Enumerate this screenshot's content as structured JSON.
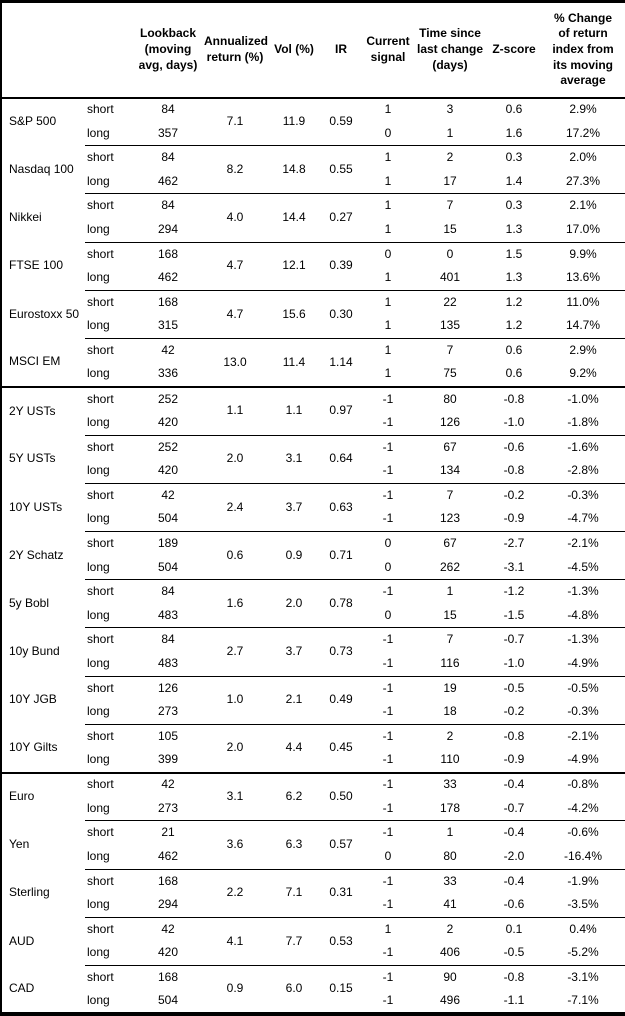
{
  "table": {
    "columns": {
      "asset": "",
      "term": "",
      "lookback": "Lookback (moving avg, days)",
      "annualized": "Annualized return (%)",
      "vol": "Vol (%)",
      "ir": "IR",
      "signal": "Current signal",
      "time": "Time since last change (days)",
      "zscore": "Z-score",
      "change": "% Change of return index from its moving average"
    },
    "sections": [
      {
        "groups": [
          {
            "name": "S&P 500",
            "annualized": "7.1",
            "vol": "11.9",
            "ir": "0.59",
            "rows": [
              {
                "term": "short",
                "lookback": "84",
                "signal": "1",
                "time": "3",
                "zscore": "0.6",
                "change": "2.9%"
              },
              {
                "term": "long",
                "lookback": "357",
                "signal": "0",
                "time": "1",
                "zscore": "1.6",
                "change": "17.2%"
              }
            ]
          },
          {
            "name": "Nasdaq 100",
            "annualized": "8.2",
            "vol": "14.8",
            "ir": "0.55",
            "rows": [
              {
                "term": "short",
                "lookback": "84",
                "signal": "1",
                "time": "2",
                "zscore": "0.3",
                "change": "2.0%"
              },
              {
                "term": "long",
                "lookback": "462",
                "signal": "1",
                "time": "17",
                "zscore": "1.4",
                "change": "27.3%"
              }
            ]
          },
          {
            "name": "Nikkei",
            "annualized": "4.0",
            "vol": "14.4",
            "ir": "0.27",
            "rows": [
              {
                "term": "short",
                "lookback": "84",
                "signal": "1",
                "time": "7",
                "zscore": "0.3",
                "change": "2.1%"
              },
              {
                "term": "long",
                "lookback": "294",
                "signal": "1",
                "time": "15",
                "zscore": "1.3",
                "change": "17.0%"
              }
            ]
          },
          {
            "name": "FTSE 100",
            "annualized": "4.7",
            "vol": "12.1",
            "ir": "0.39",
            "rows": [
              {
                "term": "short",
                "lookback": "168",
                "signal": "0",
                "time": "0",
                "zscore": "1.5",
                "change": "9.9%"
              },
              {
                "term": "long",
                "lookback": "462",
                "signal": "1",
                "time": "401",
                "zscore": "1.3",
                "change": "13.6%"
              }
            ]
          },
          {
            "name": "Eurostoxx 50",
            "annualized": "4.7",
            "vol": "15.6",
            "ir": "0.30",
            "rows": [
              {
                "term": "short",
                "lookback": "168",
                "signal": "1",
                "time": "22",
                "zscore": "1.2",
                "change": "11.0%"
              },
              {
                "term": "long",
                "lookback": "315",
                "signal": "1",
                "time": "135",
                "zscore": "1.2",
                "change": "14.7%"
              }
            ]
          },
          {
            "name": "MSCI EM",
            "annualized": "13.0",
            "vol": "11.4",
            "ir": "1.14",
            "rows": [
              {
                "term": "short",
                "lookback": "42",
                "signal": "1",
                "time": "7",
                "zscore": "0.6",
                "change": "2.9%"
              },
              {
                "term": "long",
                "lookback": "336",
                "signal": "1",
                "time": "75",
                "zscore": "0.6",
                "change": "9.2%"
              }
            ]
          }
        ]
      },
      {
        "groups": [
          {
            "name": "2Y USTs",
            "annualized": "1.1",
            "vol": "1.1",
            "ir": "0.97",
            "rows": [
              {
                "term": "short",
                "lookback": "252",
                "signal": "-1",
                "time": "80",
                "zscore": "-0.8",
                "change": "-1.0%"
              },
              {
                "term": "long",
                "lookback": "420",
                "signal": "-1",
                "time": "126",
                "zscore": "-1.0",
                "change": "-1.8%"
              }
            ]
          },
          {
            "name": "5Y USTs",
            "annualized": "2.0",
            "vol": "3.1",
            "ir": "0.64",
            "rows": [
              {
                "term": "short",
                "lookback": "252",
                "signal": "-1",
                "time": "67",
                "zscore": "-0.6",
                "change": "-1.6%"
              },
              {
                "term": "long",
                "lookback": "420",
                "signal": "-1",
                "time": "134",
                "zscore": "-0.8",
                "change": "-2.8%"
              }
            ]
          },
          {
            "name": "10Y USTs",
            "annualized": "2.4",
            "vol": "3.7",
            "ir": "0.63",
            "rows": [
              {
                "term": "short",
                "lookback": "42",
                "signal": "-1",
                "time": "7",
                "zscore": "-0.2",
                "change": "-0.3%"
              },
              {
                "term": "long",
                "lookback": "504",
                "signal": "-1",
                "time": "123",
                "zscore": "-0.9",
                "change": "-4.7%"
              }
            ]
          },
          {
            "name": "2Y Schatz",
            "annualized": "0.6",
            "vol": "0.9",
            "ir": "0.71",
            "rows": [
              {
                "term": "short",
                "lookback": "189",
                "signal": "0",
                "time": "67",
                "zscore": "-2.7",
                "change": "-2.1%"
              },
              {
                "term": "long",
                "lookback": "504",
                "signal": "0",
                "time": "262",
                "zscore": "-3.1",
                "change": "-4.5%"
              }
            ]
          },
          {
            "name": "5y Bobl",
            "annualized": "1.6",
            "vol": "2.0",
            "ir": "0.78",
            "rows": [
              {
                "term": "short",
                "lookback": "84",
                "signal": "-1",
                "time": "1",
                "zscore": "-1.2",
                "change": "-1.3%"
              },
              {
                "term": "long",
                "lookback": "483",
                "signal": "0",
                "time": "15",
                "zscore": "-1.5",
                "change": "-4.8%"
              }
            ]
          },
          {
            "name": "10y Bund",
            "annualized": "2.7",
            "vol": "3.7",
            "ir": "0.73",
            "rows": [
              {
                "term": "short",
                "lookback": "84",
                "signal": "-1",
                "time": "7",
                "zscore": "-0.7",
                "change": "-1.3%"
              },
              {
                "term": "long",
                "lookback": "483",
                "signal": "-1",
                "time": "116",
                "zscore": "-1.0",
                "change": "-4.9%"
              }
            ]
          },
          {
            "name": "10Y JGB",
            "annualized": "1.0",
            "vol": "2.1",
            "ir": "0.49",
            "rows": [
              {
                "term": "short",
                "lookback": "126",
                "signal": "-1",
                "time": "19",
                "zscore": "-0.5",
                "change": "-0.5%"
              },
              {
                "term": "long",
                "lookback": "273",
                "signal": "-1",
                "time": "18",
                "zscore": "-0.2",
                "change": "-0.3%"
              }
            ]
          },
          {
            "name": "10Y Gilts",
            "annualized": "2.0",
            "vol": "4.4",
            "ir": "0.45",
            "rows": [
              {
                "term": "short",
                "lookback": "105",
                "signal": "-1",
                "time": "2",
                "zscore": "-0.8",
                "change": "-2.1%"
              },
              {
                "term": "long",
                "lookback": "399",
                "signal": "-1",
                "time": "110",
                "zscore": "-0.9",
                "change": "-4.9%"
              }
            ]
          }
        ]
      },
      {
        "groups": [
          {
            "name": "Euro",
            "annualized": "3.1",
            "vol": "6.2",
            "ir": "0.50",
            "rows": [
              {
                "term": "short",
                "lookback": "42",
                "signal": "-1",
                "time": "33",
                "zscore": "-0.4",
                "change": "-0.8%"
              },
              {
                "term": "long",
                "lookback": "273",
                "signal": "-1",
                "time": "178",
                "zscore": "-0.7",
                "change": "-4.2%"
              }
            ]
          },
          {
            "name": "Yen",
            "annualized": "3.6",
            "vol": "6.3",
            "ir": "0.57",
            "rows": [
              {
                "term": "short",
                "lookback": "21",
                "signal": "-1",
                "time": "1",
                "zscore": "-0.4",
                "change": "-0.6%"
              },
              {
                "term": "long",
                "lookback": "462",
                "signal": "0",
                "time": "80",
                "zscore": "-2.0",
                "change": "-16.4%"
              }
            ]
          },
          {
            "name": "Sterling",
            "annualized": "2.2",
            "vol": "7.1",
            "ir": "0.31",
            "rows": [
              {
                "term": "short",
                "lookback": "168",
                "signal": "-1",
                "time": "33",
                "zscore": "-0.4",
                "change": "-1.9%"
              },
              {
                "term": "long",
                "lookback": "294",
                "signal": "-1",
                "time": "41",
                "zscore": "-0.6",
                "change": "-3.5%"
              }
            ]
          },
          {
            "name": "AUD",
            "annualized": "4.1",
            "vol": "7.7",
            "ir": "0.53",
            "rows": [
              {
                "term": "short",
                "lookback": "42",
                "signal": "1",
                "time": "2",
                "zscore": "0.1",
                "change": "0.4%"
              },
              {
                "term": "long",
                "lookback": "420",
                "signal": "-1",
                "time": "406",
                "zscore": "-0.5",
                "change": "-5.2%"
              }
            ]
          },
          {
            "name": "CAD",
            "annualized": "0.9",
            "vol": "6.0",
            "ir": "0.15",
            "rows": [
              {
                "term": "short",
                "lookback": "168",
                "signal": "-1",
                "time": "90",
                "zscore": "-0.8",
                "change": "-3.1%"
              },
              {
                "term": "long",
                "lookback": "504",
                "signal": "-1",
                "time": "496",
                "zscore": "-1.1",
                "change": "-7.1%"
              }
            ]
          }
        ]
      }
    ]
  }
}
